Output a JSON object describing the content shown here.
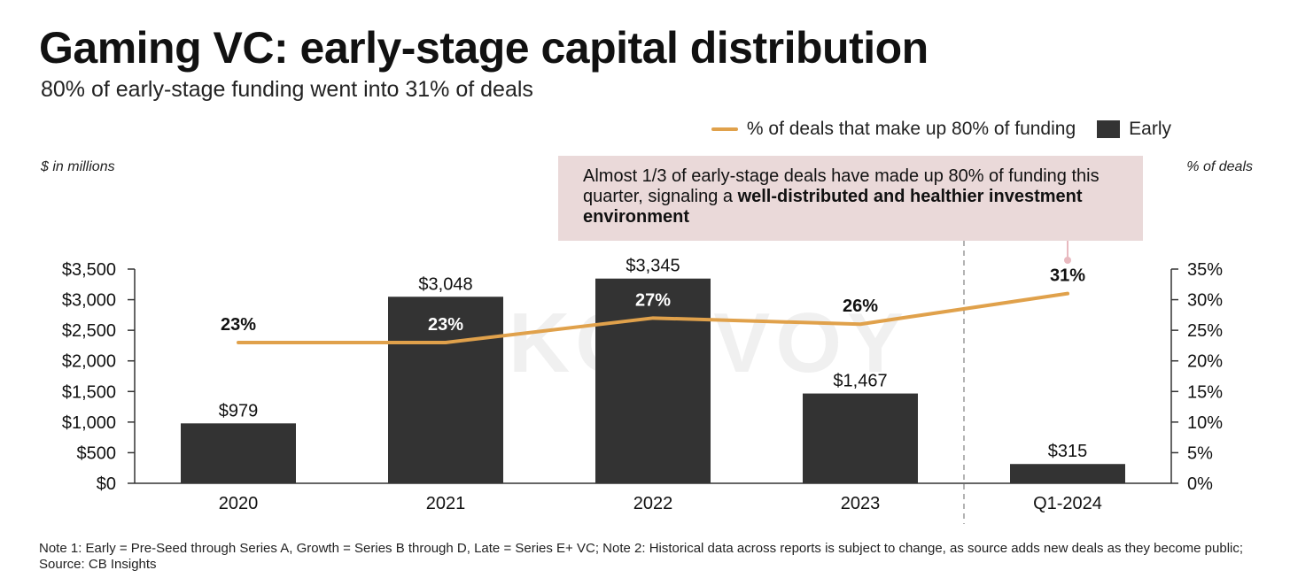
{
  "header": {
    "title": "Gaming VC: early-stage capital distribution",
    "subtitle": "80% of early-stage funding went into 31% of deals"
  },
  "legend": {
    "line_label": "% of deals that make up 80% of funding",
    "bar_label": "Early"
  },
  "axis_notes": {
    "left": "$ in millions",
    "right": "% of deals"
  },
  "callout": {
    "text_plain": "Almost 1/3 of early-stage deals have made up 80% of funding this quarter, signaling a ",
    "text_bold": "well-distributed and healthier investment environment"
  },
  "watermark": "KONVOY",
  "footnote": "Note 1: Early = Pre-Seed through Series A, Growth = Series B through D, Late = Series E+ VC; Note 2: Historical data across reports is subject to change, as source adds new deals as they become public; Source: CB Insights",
  "colors": {
    "bar": "#333333",
    "line": "#E0A14B",
    "callout_bg": "#EAD9D9"
  },
  "chart_data": {
    "type": "bar",
    "categories": [
      "2020",
      "2021",
      "2022",
      "2023",
      "Q1-2024"
    ],
    "series": [
      {
        "name": "Early",
        "axis": "left",
        "kind": "bar",
        "values": [
          979,
          3048,
          3345,
          1467,
          315
        ],
        "labels": [
          "$979",
          "$3,048",
          "$3,345",
          "$1,467",
          "$315"
        ]
      },
      {
        "name": "% of deals that make up 80% of funding",
        "axis": "right",
        "kind": "line",
        "values": [
          23,
          23,
          27,
          26,
          31
        ],
        "labels": [
          "23%",
          "23%",
          "27%",
          "26%",
          "31%"
        ]
      }
    ],
    "y_left": {
      "ylim": [
        0,
        3500
      ],
      "ticks": [
        "$0",
        "$500",
        "$1,000",
        "$1,500",
        "$2,000",
        "$2,500",
        "$3,000",
        "$3,500"
      ]
    },
    "y_right": {
      "ylim": [
        0,
        35
      ],
      "ticks": [
        "0%",
        "5%",
        "10%",
        "15%",
        "20%",
        "25%",
        "30%",
        "35%"
      ]
    },
    "ylabel_left": "$ in millions",
    "ylabel_right": "% of deals"
  }
}
